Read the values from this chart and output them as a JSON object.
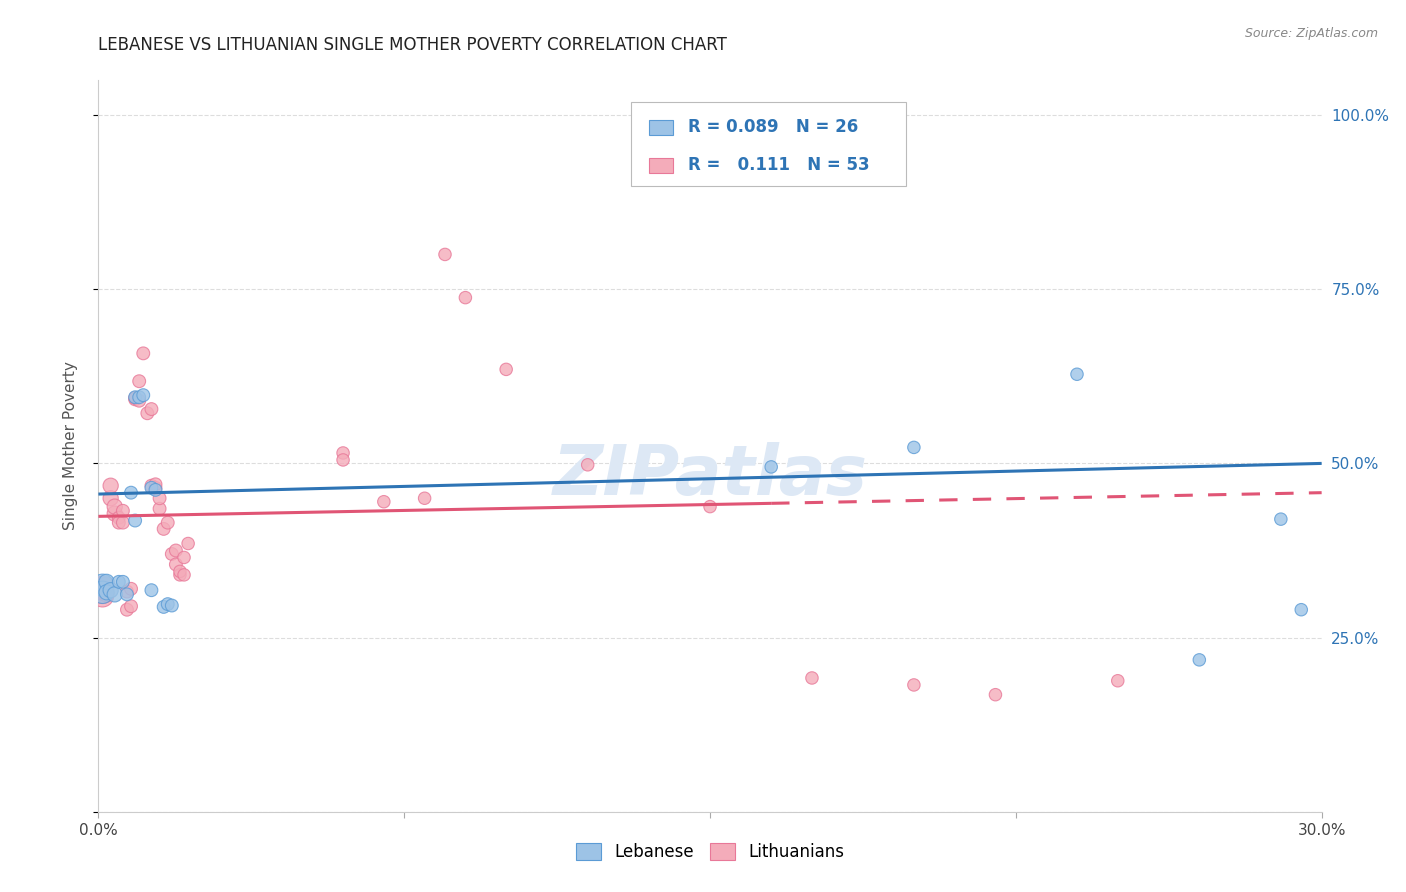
{
  "title": "LEBANESE VS LITHUANIAN SINGLE MOTHER POVERTY CORRELATION CHART",
  "source": "Source: ZipAtlas.com",
  "ylabel": "Single Mother Poverty",
  "legend_label1": "Lebanese",
  "legend_label2": "Lithuanians",
  "r1": "0.089",
  "n1": "26",
  "r2": "0.111",
  "n2": "53",
  "y_ticks": [
    0.0,
    0.25,
    0.5,
    0.75,
    1.0
  ],
  "y_tick_labels": [
    "",
    "25.0%",
    "50.0%",
    "75.0%",
    "100.0%"
  ],
  "x_min": 0.0,
  "x_max": 0.3,
  "y_min": 0.0,
  "y_max": 1.05,
  "blue_fill": "#9DC3E6",
  "pink_fill": "#F4ACBA",
  "blue_edge": "#5B9BD5",
  "pink_edge": "#E87898",
  "blue_line": "#2E74B5",
  "pink_line": "#E05575",
  "right_label_color": "#2E74B5",
  "grid_color": "#DDDDDD",
  "blue_line_pts": [
    [
      0.0,
      0.456
    ],
    [
      0.3,
      0.5
    ]
  ],
  "pink_line_pts": [
    [
      0.0,
      0.424
    ],
    [
      0.3,
      0.458
    ]
  ],
  "pink_line_dash_start": 0.165,
  "blue_scatter": [
    [
      0.001,
      0.325
    ],
    [
      0.001,
      0.315
    ],
    [
      0.002,
      0.33
    ],
    [
      0.002,
      0.315
    ],
    [
      0.003,
      0.318
    ],
    [
      0.004,
      0.312
    ],
    [
      0.005,
      0.33
    ],
    [
      0.006,
      0.33
    ],
    [
      0.007,
      0.312
    ],
    [
      0.008,
      0.458
    ],
    [
      0.009,
      0.418
    ],
    [
      0.009,
      0.595
    ],
    [
      0.01,
      0.595
    ],
    [
      0.011,
      0.598
    ],
    [
      0.013,
      0.465
    ],
    [
      0.013,
      0.318
    ],
    [
      0.014,
      0.462
    ],
    [
      0.016,
      0.294
    ],
    [
      0.017,
      0.298
    ],
    [
      0.018,
      0.296
    ],
    [
      0.165,
      0.495
    ],
    [
      0.2,
      0.523
    ],
    [
      0.24,
      0.628
    ],
    [
      0.27,
      0.218
    ],
    [
      0.29,
      0.42
    ],
    [
      0.295,
      0.29
    ]
  ],
  "pink_scatter": [
    [
      0.001,
      0.31
    ],
    [
      0.001,
      0.315
    ],
    [
      0.001,
      0.32
    ],
    [
      0.001,
      0.322
    ],
    [
      0.002,
      0.326
    ],
    [
      0.002,
      0.312
    ],
    [
      0.003,
      0.45
    ],
    [
      0.003,
      0.468
    ],
    [
      0.004,
      0.428
    ],
    [
      0.004,
      0.438
    ],
    [
      0.005,
      0.422
    ],
    [
      0.005,
      0.415
    ],
    [
      0.006,
      0.415
    ],
    [
      0.006,
      0.432
    ],
    [
      0.007,
      0.316
    ],
    [
      0.007,
      0.29
    ],
    [
      0.008,
      0.295
    ],
    [
      0.008,
      0.32
    ],
    [
      0.009,
      0.592
    ],
    [
      0.009,
      0.594
    ],
    [
      0.01,
      0.618
    ],
    [
      0.01,
      0.59
    ],
    [
      0.011,
      0.658
    ],
    [
      0.012,
      0.572
    ],
    [
      0.013,
      0.578
    ],
    [
      0.013,
      0.468
    ],
    [
      0.014,
      0.465
    ],
    [
      0.014,
      0.47
    ],
    [
      0.015,
      0.435
    ],
    [
      0.015,
      0.45
    ],
    [
      0.016,
      0.406
    ],
    [
      0.017,
      0.415
    ],
    [
      0.018,
      0.37
    ],
    [
      0.019,
      0.355
    ],
    [
      0.019,
      0.375
    ],
    [
      0.02,
      0.34
    ],
    [
      0.02,
      0.345
    ],
    [
      0.021,
      0.365
    ],
    [
      0.021,
      0.34
    ],
    [
      0.022,
      0.385
    ],
    [
      0.06,
      0.515
    ],
    [
      0.06,
      0.505
    ],
    [
      0.07,
      0.445
    ],
    [
      0.08,
      0.45
    ],
    [
      0.085,
      0.8
    ],
    [
      0.09,
      0.738
    ],
    [
      0.1,
      0.635
    ],
    [
      0.12,
      0.498
    ],
    [
      0.15,
      0.438
    ],
    [
      0.175,
      0.192
    ],
    [
      0.2,
      0.182
    ],
    [
      0.22,
      0.168
    ],
    [
      0.25,
      0.188
    ]
  ],
  "x_ticks": [
    0.0,
    0.075,
    0.15,
    0.225,
    0.3
  ],
  "x_tick_labels": [
    "0.0%",
    "",
    "",
    "",
    "30.0%"
  ]
}
